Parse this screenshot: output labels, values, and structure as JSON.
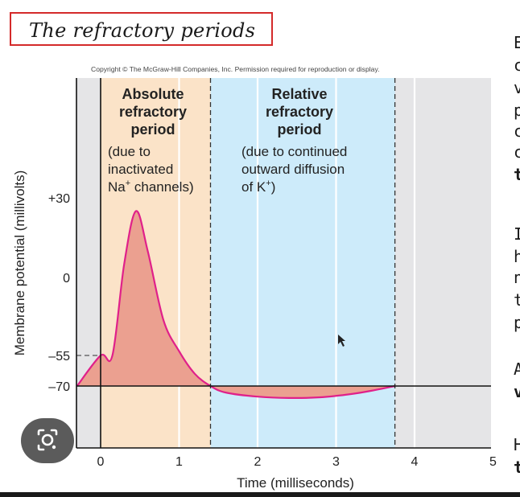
{
  "title": "The refractory periods",
  "copyright": "Copyright © The McGraw-Hill Companies, Inc. Permission required for reproduction or display.",
  "right_text_lines": [
    "E",
    "c",
    "v",
    "p",
    "c",
    "c",
    "t",
    "I",
    "h",
    "n",
    "t",
    "p",
    "A",
    "v",
    "H",
    "t"
  ],
  "lens_icon": "camera-lens-icon",
  "colors": {
    "absolute_region": "#fbe3c8",
    "relative_region": "#cdebfa",
    "plot_background": "#e5e5e7",
    "curve": "#e0208a",
    "curve_fill": "#eba090",
    "title_border": "#d42a2a"
  },
  "chart_data": {
    "type": "line",
    "xlabel": "Time (milliseconds)",
    "ylabel": "Membrane potential (millivolts)",
    "xlim": [
      -0.3,
      5
    ],
    "ylim": [
      -110,
      65
    ],
    "x_ticks": [
      0,
      1,
      2,
      3,
      4,
      5
    ],
    "x_tick_labels": [
      "0",
      "1",
      "2",
      "3",
      "4",
      "5"
    ],
    "y_ticks": [
      30,
      0,
      -55,
      -70
    ],
    "y_tick_labels": [
      "+30",
      "0",
      "–55",
      "–70"
    ],
    "grid": "vertical",
    "regions": [
      {
        "heading": [
          "Absolute",
          "refractory",
          "period"
        ],
        "note": [
          "(due to",
          "inactivated",
          "Na+ channels)"
        ],
        "note_sup": "+",
        "x_start": 0,
        "x_end": 1.4
      },
      {
        "heading": [
          "Relative",
          "refractory",
          "period"
        ],
        "note": [
          "(due to continued",
          "outward diffusion",
          "of K+)"
        ],
        "note_sup": "+",
        "x_start": 1.4,
        "x_end": 3.75
      }
    ],
    "resting_potential": -70,
    "threshold": -55,
    "series": [
      {
        "x": [
          -0.3,
          0,
          0.15,
          0.3,
          0.45,
          0.6,
          0.8,
          1.0,
          1.2,
          1.4,
          1.6,
          2.0,
          2.4,
          2.8,
          3.2,
          3.5,
          3.75
        ],
        "values": [
          -70,
          -55,
          -55,
          5,
          25,
          10,
          -30,
          -52,
          -64,
          -70,
          -75,
          -78,
          -79,
          -78.5,
          -76,
          -73,
          -70
        ]
      }
    ]
  }
}
